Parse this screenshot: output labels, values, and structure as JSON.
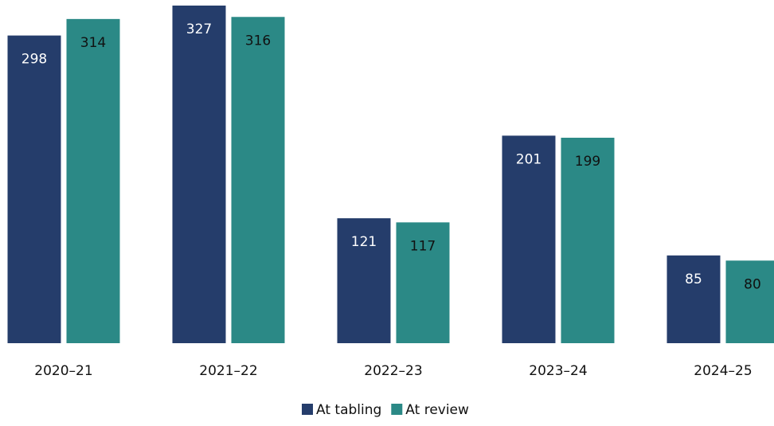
{
  "chart_data": {
    "type": "bar",
    "categories": [
      "2020–21",
      "2021–22",
      "2022–23",
      "2023–24",
      "2024–25"
    ],
    "series": [
      {
        "name": "At tabling",
        "color": "#253d6b",
        "label_color": "#ffffff",
        "values": [
          298,
          327,
          121,
          201,
          85
        ]
      },
      {
        "name": "At review",
        "color": "#2b8986",
        "label_color": "#111111",
        "values": [
          314,
          316,
          117,
          199,
          80
        ]
      }
    ],
    "legend": "bottom",
    "grid": false
  }
}
